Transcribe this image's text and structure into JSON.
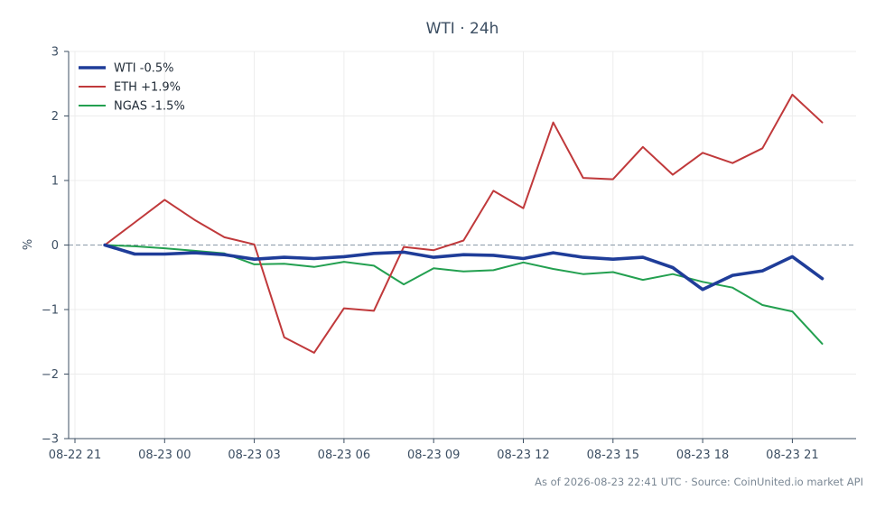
{
  "chart_data": {
    "type": "line",
    "title": "WTI · 24h",
    "xlabel": "",
    "ylabel": "%",
    "ylim": [
      -3,
      3
    ],
    "yticks": [
      3,
      2,
      1,
      0,
      -1,
      -2,
      -3
    ],
    "ytick_labels": [
      "3",
      "2",
      "1",
      "0",
      "−1",
      "−2",
      "−3"
    ],
    "xticks": [
      "08-22 21",
      "08-23 00",
      "08-23 03",
      "08-23 06",
      "08-23 09",
      "08-23 12",
      "08-23 15",
      "08-23 18",
      "08-23 21"
    ],
    "x": [
      "08-22 22",
      "08-22 23",
      "08-23 00",
      "08-23 01",
      "08-23 02",
      "08-23 03",
      "08-23 04",
      "08-23 05",
      "08-23 06",
      "08-23 07",
      "08-23 08",
      "08-23 09",
      "08-23 10",
      "08-23 11",
      "08-23 12",
      "08-23 13",
      "08-23 14",
      "08-23 15",
      "08-23 16",
      "08-23 17",
      "08-23 18",
      "08-23 19",
      "08-23 20",
      "08-23 21",
      "08-23 22"
    ],
    "grid": true,
    "legend_position": "top-left",
    "zero_line": true,
    "series": [
      {
        "name": "WTI -0.5%",
        "color": "#1f3d99",
        "values": [
          0,
          -0.14,
          -0.14,
          -0.12,
          -0.15,
          -0.22,
          -0.19,
          -0.21,
          -0.18,
          -0.13,
          -0.11,
          -0.19,
          -0.15,
          -0.16,
          -0.21,
          -0.12,
          -0.19,
          -0.22,
          -0.19,
          -0.35,
          -0.69,
          -0.47,
          -0.4,
          -0.18,
          -0.52
        ]
      },
      {
        "name": "ETH +1.9%",
        "color": "#c0393b",
        "values": [
          0,
          0.35,
          0.7,
          0.39,
          0.12,
          0.01,
          -1.43,
          -1.67,
          -0.98,
          -1.02,
          -0.03,
          -0.08,
          0.07,
          0.84,
          0.57,
          1.9,
          1.04,
          1.02,
          1.52,
          1.09,
          1.43,
          1.27,
          1.5,
          2.33,
          1.9
        ]
      },
      {
        "name": "NGAS -1.5%",
        "color": "#23a050",
        "values": [
          0,
          -0.02,
          -0.05,
          -0.09,
          -0.13,
          -0.3,
          -0.29,
          -0.34,
          -0.26,
          -0.32,
          -0.61,
          -0.36,
          -0.41,
          -0.39,
          -0.27,
          -0.37,
          -0.45,
          -0.42,
          -0.54,
          -0.45,
          -0.57,
          -0.66,
          -0.93,
          -1.03,
          -1.53
        ]
      }
    ]
  },
  "footer": "As of 2026-08-23 22:41 UTC · Source: CoinUnited.io market API"
}
